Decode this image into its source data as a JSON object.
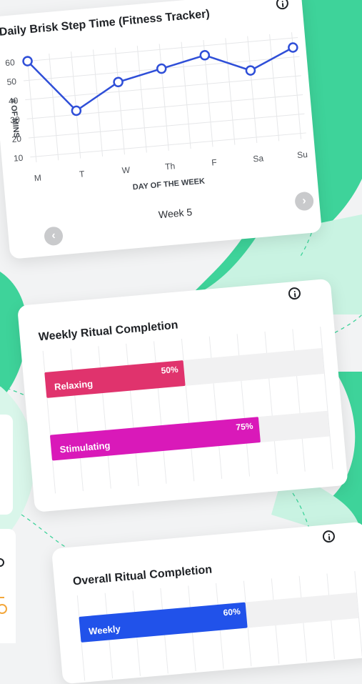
{
  "colors": {
    "accent_green": "#3ed39a",
    "light_green": "#c9f3e2",
    "line_blue": "#2f4fd8",
    "relaxing": "#e0336d",
    "stimulating": "#d919b9",
    "weekly": "#2152ea"
  },
  "icons": {
    "info": "info-icon",
    "prev": "chevron-left-icon",
    "next": "chevron-right-icon"
  },
  "step_card": {
    "title": "Daily Brisk Step Time (Fitness Tracker)",
    "week_label": "Week 5",
    "prev_symbol": "‹",
    "next_symbol": "›"
  },
  "ritual_card": {
    "title": "Weekly Ritual Completion"
  },
  "overall_card": {
    "title": "Overall Ritual Completion"
  },
  "chart_data": [
    {
      "type": "line",
      "title": "Daily Brisk Step Time (Fitness Tracker)",
      "xlabel": "DAY OF THE WEEK",
      "ylabel": "# OF MINS",
      "categories": [
        "M",
        "T",
        "W",
        "Th",
        "F",
        "Sa",
        "Su"
      ],
      "series": [
        {
          "values": [
            60,
            32,
            45,
            50,
            55,
            45,
            55
          ]
        }
      ],
      "ylim": [
        10,
        60
      ],
      "yticks": [
        10,
        20,
        30,
        40,
        50,
        60
      ],
      "grid": true
    },
    {
      "type": "bar",
      "title": "Weekly Ritual Completion",
      "orientation": "horizontal",
      "categories": [
        "Relaxing",
        "Stimulating"
      ],
      "values": [
        50,
        75
      ],
      "value_labels": [
        "50%",
        "75%"
      ],
      "xlim": [
        0,
        100
      ]
    },
    {
      "type": "bar",
      "title": "Overall Ritual Completion",
      "orientation": "horizontal",
      "categories": [
        "Weekly"
      ],
      "values": [
        60
      ],
      "value_labels": [
        "60%"
      ],
      "xlim": [
        0,
        100
      ]
    }
  ]
}
